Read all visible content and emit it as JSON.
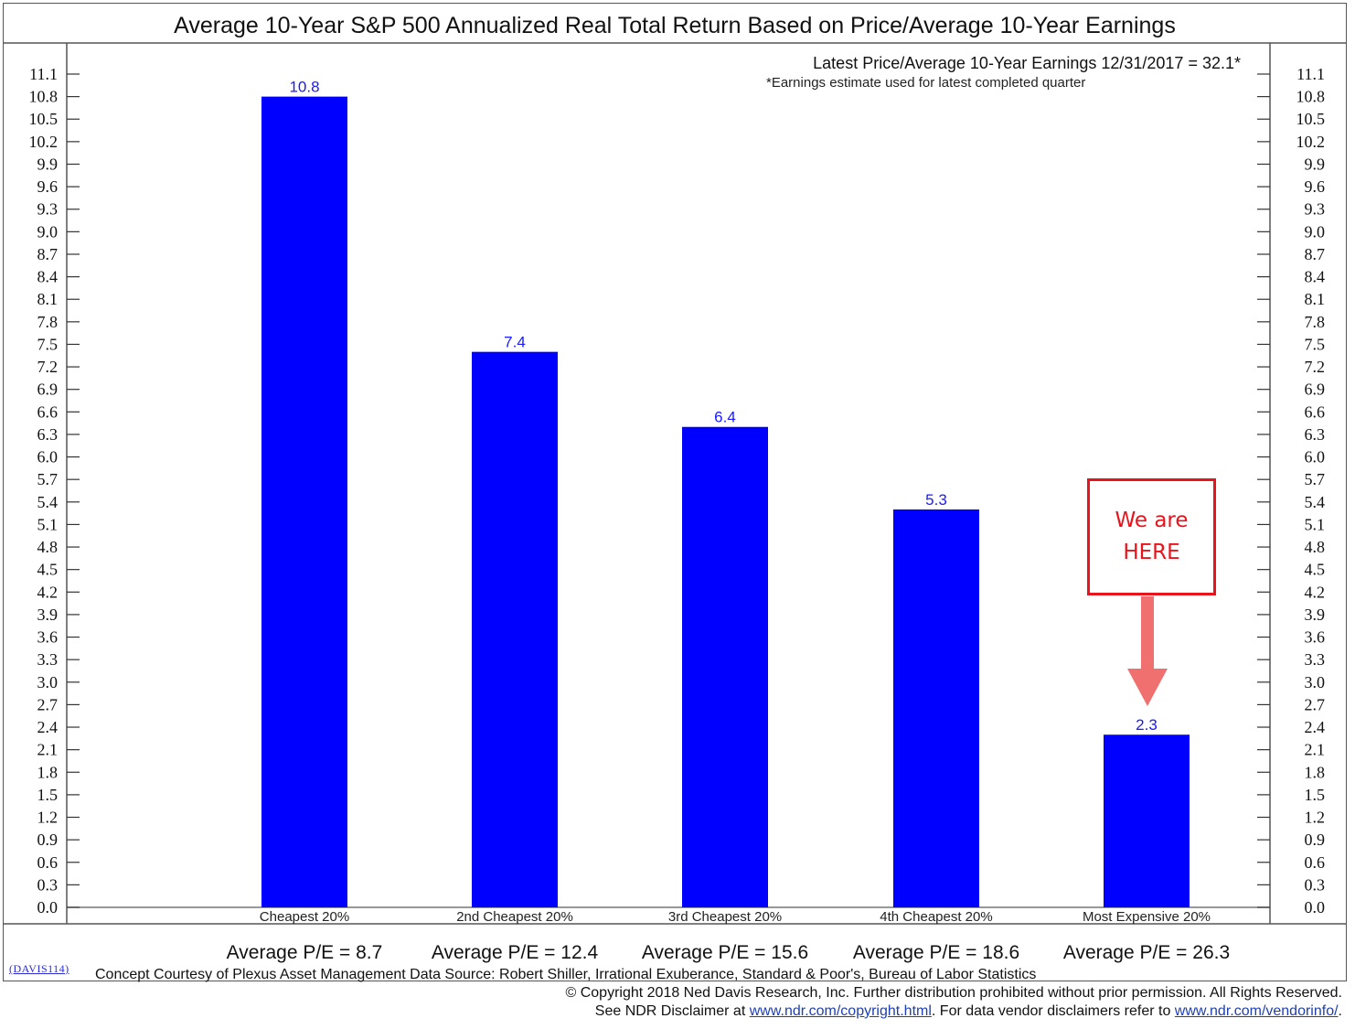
{
  "chart_data": {
    "type": "bar",
    "title": "Average 10-Year S&P 500 Annualized Real Total Return Based on Price/Average 10-Year Earnings",
    "categories": [
      "Cheapest 20%",
      "2nd Cheapest 20%",
      "3rd Cheapest 20%",
      "4th Cheapest 20%",
      "Most Expensive 20%"
    ],
    "values": [
      10.8,
      7.4,
      6.4,
      5.3,
      2.3
    ],
    "value_labels": [
      "10.8",
      "7.4",
      "6.4",
      "5.3",
      "2.3"
    ],
    "pe_labels": [
      "Average P/E = 8.7",
      "Average P/E = 12.4",
      "Average P/E = 15.6",
      "Average P/E = 18.6",
      "Average P/E = 26.3"
    ],
    "ylim": [
      0,
      11.1
    ],
    "yticks": [
      "0.0",
      "0.3",
      "0.6",
      "0.9",
      "1.2",
      "1.5",
      "1.8",
      "2.1",
      "2.4",
      "2.7",
      "3.0",
      "3.3",
      "3.6",
      "3.9",
      "4.2",
      "4.5",
      "4.8",
      "5.1",
      "5.4",
      "5.7",
      "6.0",
      "6.3",
      "6.6",
      "6.9",
      "7.2",
      "7.5",
      "7.8",
      "8.1",
      "8.4",
      "8.7",
      "9.0",
      "9.3",
      "9.6",
      "9.9",
      "10.2",
      "10.5",
      "10.8",
      "11.1"
    ],
    "y_axis_both_sides": true,
    "grid": false,
    "bar_color": "#0000ff",
    "value_label_color": "#1a1aff",
    "xlabel": "",
    "ylabel": ""
  },
  "notes": {
    "latest": "Latest Price/Average 10-Year Earnings 12/31/2017 = 32.1*",
    "estimate": "*Earnings estimate used for latest completed quarter"
  },
  "callout": {
    "line1": "We are",
    "line2": "HERE",
    "color": "#e8141c",
    "arrow_color": "#f07070"
  },
  "footer": {
    "code": "(DAVIS114)",
    "source": "Concept Courtesy of Plexus Asset Management Data Source: Robert Shiller, Irrational Exuberance, Standard & Poor's, Bureau of Labor Statistics",
    "copyright": "© Copyright 2018 Ned Davis Research, Inc.  Further distribution prohibited without prior permission.  All Rights Reserved.",
    "disclaimer_prefix": "See NDR Disclaimer at ",
    "disclaimer_link1": "www.ndr.com/copyright.html",
    "disclaimer_middle": ". For data vendor disclaimers refer to ",
    "disclaimer_link2": "www.ndr.com/vendorinfo/",
    "disclaimer_suffix": "."
  }
}
